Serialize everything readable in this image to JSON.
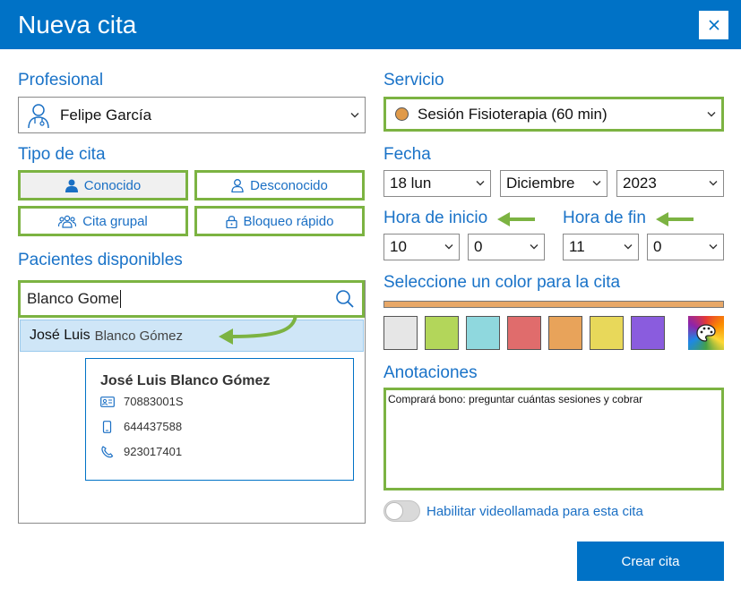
{
  "window": {
    "title": "Nueva cita",
    "close_icon": "close-icon"
  },
  "professional": {
    "label": "Profesional",
    "selected": "Felipe García"
  },
  "appointment_type": {
    "label": "Tipo de cita",
    "buttons": [
      "Conocido",
      "Desconocido",
      "Cita grupal",
      "Bloqueo rápido"
    ],
    "active": "Conocido"
  },
  "patients": {
    "label": "Pacientes disponibles",
    "search_value": "Blanco Gome",
    "result": {
      "first": "José Luis",
      "last": "Blanco Gómez"
    },
    "card": {
      "name": "José Luis Blanco Gómez",
      "id_number": "70883001S",
      "mobile": "644437588",
      "phone": "923017401"
    }
  },
  "service": {
    "label": "Servicio",
    "selected": "Sesión Fisioterapia (60 min)",
    "dot_color": "#e09a4a"
  },
  "date": {
    "label": "Fecha",
    "day": "18 lun",
    "month": "Diciembre",
    "year": "2023"
  },
  "start_time": {
    "label": "Hora de inicio",
    "hour": "10",
    "minute": "0"
  },
  "end_time": {
    "label": "Hora de fin",
    "hour": "11",
    "minute": "0"
  },
  "color": {
    "label": "Seleccione un color para la cita",
    "selected_color": "#e8a868",
    "swatches": [
      "#e6e6e6",
      "#b3d65a",
      "#8fd8de",
      "#e06c6c",
      "#e8a35a",
      "#e8d85a",
      "#8a5cde"
    ]
  },
  "notes": {
    "label": "Anotaciones",
    "value": "Comprará bono: preguntar cuántas sesiones y cobrar"
  },
  "video_call": {
    "label": "Habilitar videollamada para esta cita",
    "enabled": false
  },
  "actions": {
    "create": "Crear cita"
  },
  "colors": {
    "accent": "#0072c6",
    "highlight": "#7cb342",
    "label_blue": "#1a73c8"
  }
}
